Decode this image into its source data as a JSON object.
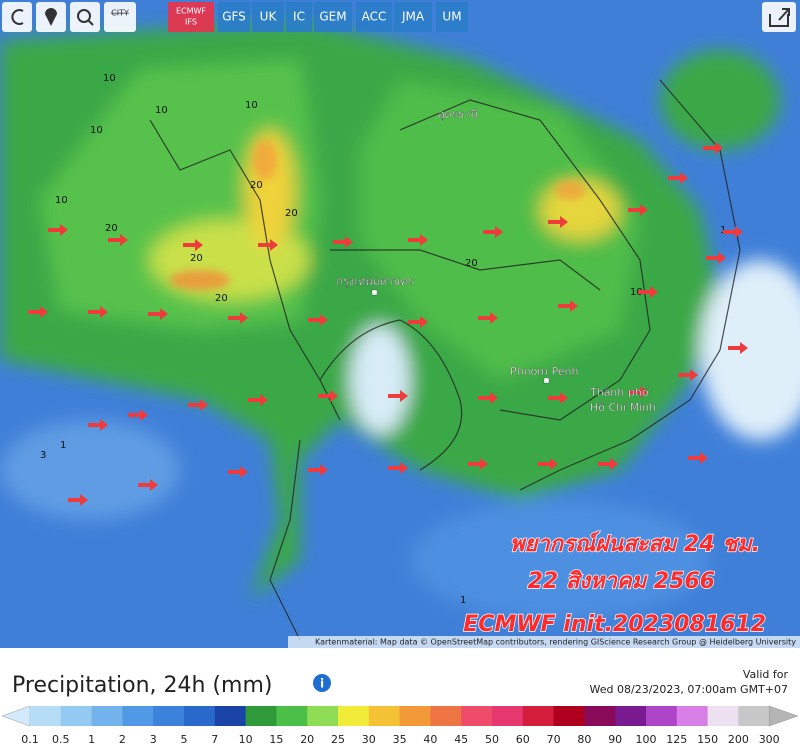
{
  "toolbar": {
    "city": "CITY",
    "models": [
      [
        "ECMWF",
        "IFS"
      ],
      [
        "GFS"
      ],
      [
        "UK"
      ],
      [
        "IC"
      ],
      [
        "GEM"
      ],
      [
        "ACC"
      ],
      [
        "JMA"
      ],
      [
        "UM"
      ]
    ]
  },
  "map": {
    "places": [
      "อุดรธานี",
      "กรุงเทพมหานคร",
      "Phnom Penh",
      "Thành phố",
      "Hồ Chí Minh"
    ],
    "contour_labels": [
      "10",
      "10",
      "10",
      "10",
      "10",
      "20",
      "20",
      "20",
      "20",
      "20",
      "3",
      "1",
      "20",
      "10",
      "1",
      "1"
    ],
    "overlay": [
      "พยากรณ์ฝนสะสม 24 ชม.",
      "22 สิงหาคม 2566",
      "ECMWF init.2023081612"
    ],
    "attribution": "Kartenmaterial: Map data © OpenStreetMap contributors, rendering GIScience Research Group @ Heidelberg University"
  },
  "legend": {
    "title": "Precipitation, 24h (mm)",
    "valid_label": "Valid for",
    "valid_time": "Wed 08/23/2023, 07:00am GMT+07",
    "scale": [
      "0.1",
      "0.5",
      "1",
      "2",
      "3",
      "5",
      "7",
      "10",
      "15",
      "20",
      "25",
      "30",
      "35",
      "40",
      "45",
      "50",
      "60",
      "70",
      "80",
      "90",
      "100",
      "125",
      "150",
      "200",
      "300"
    ],
    "colors": [
      "#b5ddf6",
      "#94c9f1",
      "#72b3ec",
      "#5199e4",
      "#3c82da",
      "#2a69cc",
      "#1a44a8",
      "#2e9a3a",
      "#4cbf48",
      "#8fdc55",
      "#f1ec3a",
      "#f4c234",
      "#f29a38",
      "#ee7443",
      "#ef4c6c",
      "#e6376e",
      "#d41c3b",
      "#b00020",
      "#8a0a5a",
      "#7a1a90",
      "#ae45c9",
      "#d77fe6",
      "#ece0f1",
      "#c7c7c7"
    ]
  }
}
